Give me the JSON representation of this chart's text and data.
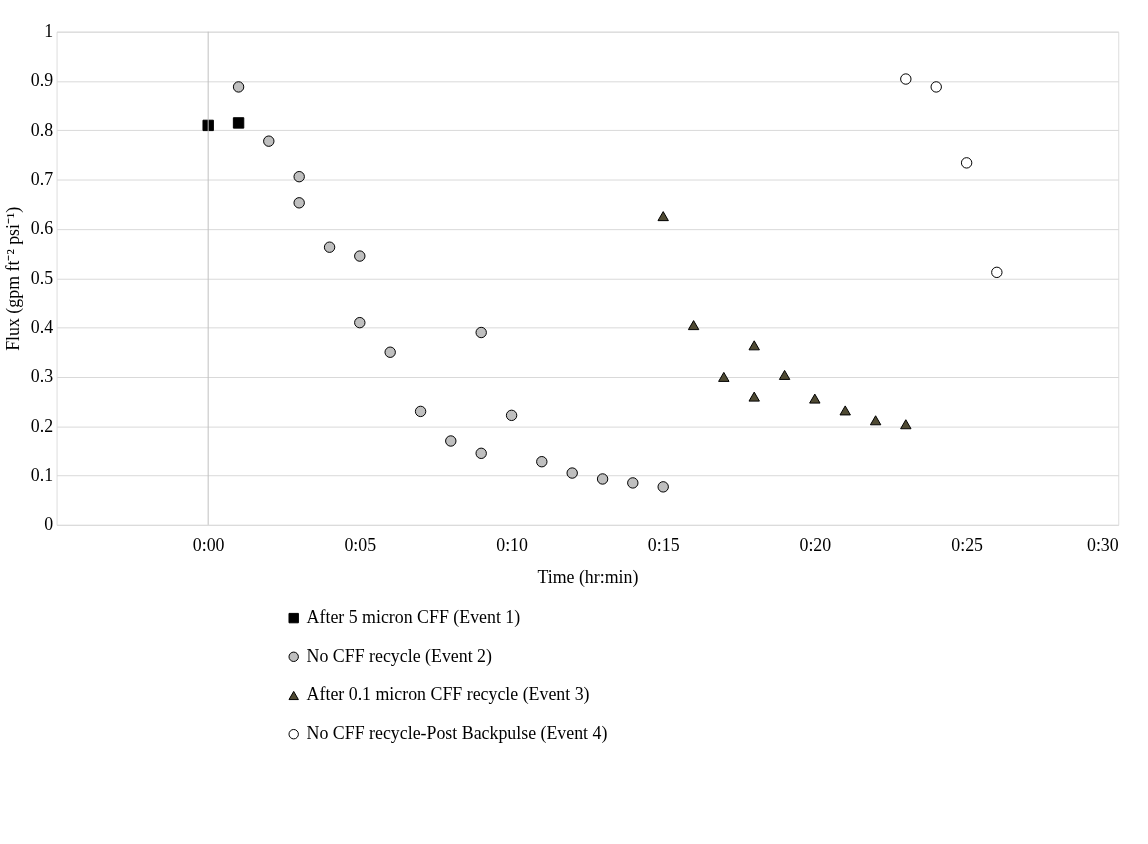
{
  "chart_data": {
    "type": "scatter",
    "xlabel": "Time  (hr:min)",
    "ylabel": "Flux  (gpm ft⁻² psi⁻¹)",
    "xlim": [
      -0.0833,
      0.5
    ],
    "ylim": [
      0,
      1
    ],
    "xticks": [
      {
        "value": 0,
        "label": "0:00"
      },
      {
        "value": 0.0833,
        "label": "0:05"
      },
      {
        "value": 0.1667,
        "label": "0:10"
      },
      {
        "value": 0.25,
        "label": "0:15"
      },
      {
        "value": 0.3333,
        "label": "0:20"
      },
      {
        "value": 0.4167,
        "label": "0:25"
      },
      {
        "value": 0.5,
        "label": "0:30"
      }
    ],
    "yticks": [
      0,
      0.1,
      0.2,
      0.3,
      0.4,
      0.5,
      0.6,
      0.7,
      0.8,
      0.9,
      1
    ],
    "grid": "y",
    "legend": "bottom",
    "series": [
      {
        "name": "After 5 micron CFF (Event 1)",
        "color": "#000000",
        "marker": "square",
        "x": [
          0,
          0.0167
        ],
        "values": [
          0.81,
          0.815
        ]
      },
      {
        "name": "No CFF recycle (Event 2)",
        "color": "#bfbfbf",
        "marker": "circle",
        "x": [
          0.0167,
          0.0333,
          0.05,
          0.05,
          0.0667,
          0.0833,
          0.0833,
          0.1,
          0.1167,
          0.1333,
          0.15,
          0.15,
          0.1667,
          0.1833,
          0.2,
          0.2167,
          0.2333,
          0.25
        ],
        "values": [
          0.888,
          0.778,
          0.706,
          0.653,
          0.563,
          0.545,
          0.41,
          0.35,
          0.23,
          0.17,
          0.145,
          0.39,
          0.222,
          0.128,
          0.105,
          0.093,
          0.085,
          0.077
        ]
      },
      {
        "name": "After 0.1 micron CFF recycle (Event 3)",
        "color": "#4f4a33",
        "marker": "triangle",
        "x": [
          0.25,
          0.2667,
          0.2833,
          0.3,
          0.3,
          0.3167,
          0.3333,
          0.35,
          0.3667,
          0.3833
        ],
        "values": [
          0.626,
          0.405,
          0.3,
          0.364,
          0.26,
          0.304,
          0.256,
          0.232,
          0.212,
          0.204
        ]
      },
      {
        "name": "No CFF recycle-Post Backpulse (Event 4)",
        "color": "#ffffff",
        "marker": "circle",
        "x": [
          0.3833,
          0.4,
          0.4167,
          0.4333
        ],
        "values": [
          0.904,
          0.888,
          0.734,
          0.512
        ]
      }
    ]
  }
}
